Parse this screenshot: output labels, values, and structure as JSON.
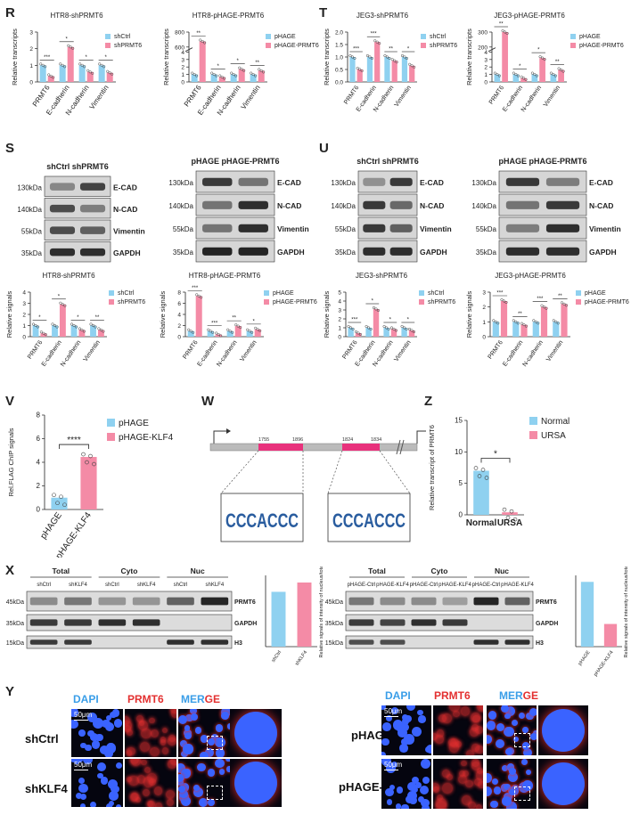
{
  "panels": {
    "R": "R",
    "S": "S",
    "T": "T",
    "U": "U",
    "V": "V",
    "W": "W",
    "Z": "Z",
    "X": "X",
    "Y": "Y"
  },
  "colors": {
    "blue": "#8fd1f0",
    "pink": "#f48ba6",
    "dark": "#222222",
    "micro_bg": "#05050f",
    "dapi": "#3a63ff",
    "prmt6": "#e33030"
  },
  "chart_data": [
    {
      "id": "R1",
      "type": "bar",
      "title": "HTR8-shPRMT6",
      "ylabel": "Relative transcripts",
      "categories": [
        "PRMT6",
        "E-cadherin",
        "N-cadherin",
        "Vimentin"
      ],
      "yticks": [
        "0",
        "1",
        "2",
        "3"
      ],
      "ylim": [
        0,
        3
      ],
      "series": [
        {
          "name": "shCtrl",
          "values": [
            1,
            1,
            1,
            1
          ]
        },
        {
          "name": "shPRMT6",
          "values": [
            0.35,
            2.1,
            0.6,
            0.55
          ]
        }
      ],
      "sig": [
        "***",
        "*",
        "*",
        "*"
      ]
    },
    {
      "id": "R2",
      "type": "bar",
      "title": "HTR8-pHAGE-PRMT6",
      "ylabel": "Relative transcripts",
      "categories": [
        "PRMT6",
        "E-cadherin",
        "N-cadherin",
        "Vimentin"
      ],
      "yticks": [
        "0",
        "1",
        "2",
        "3",
        "4",
        "600",
        "800"
      ],
      "ylim": [
        0,
        800
      ],
      "series": [
        {
          "name": "pHAGE",
          "values": [
            1,
            1,
            1,
            1
          ]
        },
        {
          "name": "pHAGE-PRMT6",
          "values": [
            650,
            0.65,
            1.7,
            1.5
          ]
        }
      ],
      "sig": [
        "**",
        "*",
        "*",
        "**"
      ]
    },
    {
      "id": "T1",
      "type": "bar",
      "title": "JEG3-shPRMT6",
      "ylabel": "Relative transcripts",
      "categories": [
        "PRMT6",
        "E-cadherin",
        "N-cadherin",
        "Vimentin"
      ],
      "yticks": [
        "0.0",
        "0.5",
        "1.0",
        "1.5",
        "2.0"
      ],
      "ylim": [
        0,
        2
      ],
      "series": [
        {
          "name": "shCtrl",
          "values": [
            1,
            1,
            1,
            1
          ]
        },
        {
          "name": "shPRMT6",
          "values": [
            0.5,
            1.6,
            0.85,
            0.65
          ]
        }
      ],
      "sig": [
        "***",
        "***",
        "**",
        "*"
      ]
    },
    {
      "id": "T2",
      "type": "bar",
      "title": "JEG3-pHAGE-PRMT6",
      "ylabel": "Relative transcripts",
      "categories": [
        "PRMT6",
        "E-cadherin",
        "N-cadherin",
        "Vimentin"
      ],
      "yticks": [
        "0",
        "1",
        "2",
        "3",
        "4",
        "5",
        "200",
        "300"
      ],
      "ylim": [
        0,
        300
      ],
      "series": [
        {
          "name": "pHAGE",
          "values": [
            1,
            1,
            1,
            1
          ]
        },
        {
          "name": "pHAGE-PRMT6",
          "values": [
            310,
            0.5,
            3.2,
            1.6
          ]
        }
      ],
      "sig": [
        "**",
        "*",
        "*",
        "**"
      ]
    },
    {
      "id": "S1",
      "type": "bar",
      "title": "HTR8-shPRMT6",
      "ylabel": "Relative signals",
      "categories": [
        "PRMT6",
        "E-cadherin",
        "N-cadherin",
        "Vimentin"
      ],
      "yticks": [
        "0",
        "1",
        "2",
        "3",
        "4"
      ],
      "ylim": [
        0,
        4
      ],
      "series": [
        {
          "name": "shCtrl",
          "values": [
            1,
            1,
            1,
            1
          ]
        },
        {
          "name": "shPRMT6",
          "values": [
            0.3,
            2.9,
            0.6,
            0.6
          ]
        }
      ],
      "sig": [
        "*",
        "*",
        "*",
        "**"
      ]
    },
    {
      "id": "S2",
      "type": "bar",
      "title": "HTR8-pHAGE-PRMT6",
      "ylabel": "Relative signals",
      "categories": [
        "PRMT6",
        "E-cadherin",
        "N-cadherin",
        "Vimentin"
      ],
      "yticks": [
        "0",
        "2",
        "4",
        "6",
        "8"
      ],
      "ylim": [
        0,
        8
      ],
      "series": [
        {
          "name": "pHAGE",
          "values": [
            1,
            1,
            1,
            1
          ]
        },
        {
          "name": "pHAGE-PRMT6",
          "values": [
            7.3,
            0.4,
            1.9,
            1.3
          ]
        }
      ],
      "sig": [
        "***",
        "***",
        "**",
        "*"
      ]
    },
    {
      "id": "U1",
      "type": "bar",
      "title": "JEG3-shPRMT6",
      "ylabel": "Relative signals",
      "categories": [
        "PRMT6",
        "E-cadherin",
        "N-cadherin",
        "Vimentin"
      ],
      "yticks": [
        "0",
        "1",
        "2",
        "3",
        "4",
        "5"
      ],
      "ylim": [
        0,
        5
      ],
      "series": [
        {
          "name": "shCtrl",
          "values": [
            1,
            1,
            1,
            1
          ]
        },
        {
          "name": "shPRMT6",
          "values": [
            0.4,
            3.1,
            0.85,
            0.7
          ]
        }
      ],
      "sig": [
        "***",
        "*",
        "*",
        "*"
      ]
    },
    {
      "id": "U2",
      "type": "bar",
      "title": "JEG3-pHAGE-PRMT6",
      "ylabel": "Relative signals",
      "categories": [
        "PRMT6",
        "E-cadherin",
        "N-cadherin",
        "Vimentin"
      ],
      "yticks": [
        "0",
        "1",
        "2",
        "3"
      ],
      "ylim": [
        0,
        3
      ],
      "series": [
        {
          "name": "pHAGE",
          "values": [
            1,
            1,
            1,
            1
          ]
        },
        {
          "name": "pHAGE-PRMT6",
          "values": [
            2.4,
            0.8,
            2.0,
            2.2
          ]
        }
      ],
      "sig": [
        "***",
        "**",
        "***",
        "**"
      ]
    },
    {
      "id": "V",
      "type": "bar",
      "title": "",
      "ylabel": "Rel.FLAG ChIP signals",
      "categories": [
        "pHAGE",
        "pHAGE-KLF4"
      ],
      "yticks": [
        "0",
        "2",
        "4",
        "6",
        "8"
      ],
      "ylim": [
        0,
        8
      ],
      "series": [
        {
          "name": "",
          "values": [
            1.0,
            4.45
          ]
        }
      ],
      "legend": [
        "pHAGE",
        "pHAGE-KLF4"
      ],
      "sig": [
        "****"
      ]
    },
    {
      "id": "Z",
      "type": "bar",
      "title": "",
      "ylabel": "Relative transcript of PRMT6",
      "categories": [
        "Normal",
        "URSA"
      ],
      "yticks": [
        "0",
        "5",
        "10",
        "15"
      ],
      "ylim": [
        0,
        15
      ],
      "series": [
        {
          "name": "",
          "values": [
            7.0,
            0.4
          ]
        }
      ],
      "legend": [
        "Normal",
        "URSA"
      ],
      "sig": [
        "*"
      ]
    },
    {
      "id": "X1",
      "type": "bar",
      "title": "",
      "ylabel": "Relative signals of intensity of nucleus/total",
      "categories": [
        "shCtrl",
        "shKLF4"
      ],
      "yticks": [],
      "ylim": [
        0,
        1.3
      ],
      "series": [
        {
          "name": "",
          "values": [
            1.0,
            1.17
          ]
        }
      ]
    },
    {
      "id": "X2",
      "type": "bar",
      "title": "",
      "ylabel": "Relative signals of intensity of nucleus/total",
      "categories": [
        "pHAGE",
        "pHAGE-KLF4"
      ],
      "yticks": [],
      "ylim": [
        0,
        1.1
      ],
      "series": [
        {
          "name": "",
          "values": [
            1.0,
            0.35
          ]
        }
      ]
    }
  ],
  "blots": {
    "S_left": {
      "header": "shCtrl shPRMT6",
      "kda": [
        "130kDa",
        "140kDa",
        "55kDa",
        "35kDa"
      ],
      "proteins": [
        "E-CAD",
        "N-CAD",
        "Vimentin",
        "GAPDH"
      ]
    },
    "S_right": {
      "header": "pHAGE  pHAGE-PRMT6",
      "kda": [
        "130kDa",
        "140kDa",
        "55kDa",
        "35kDa"
      ],
      "proteins": [
        "E-CAD",
        "N-CAD",
        "Vimentin",
        "GAPDH"
      ]
    },
    "U_left": {
      "header": "shCtrl shPRMT6",
      "kda": [
        "130kDa",
        "140kDa",
        "55kDa",
        "35kDa"
      ],
      "proteins": [
        "E-CAD",
        "N-CAD",
        "Vimentin",
        "GAPDH"
      ]
    },
    "U_right": {
      "header": "pHAGE  pHAGE-PRMT6",
      "kda": [
        "130kDa",
        "140kDa",
        "55kDa",
        "35kDa"
      ],
      "proteins": [
        "E-CAD",
        "N-CAD",
        "Vimentin",
        "GAPDH"
      ]
    },
    "X_left": {
      "groups": [
        "Total",
        "Cyto",
        "Nuc"
      ],
      "lanes": [
        "shCtrl",
        "shKLF4",
        "shCtrl",
        "shKLF4",
        "shCtrl",
        "shKLF4"
      ],
      "kda": [
        "45kDa",
        "35kDa",
        "15kDa"
      ],
      "proteins": [
        "PRMT6",
        "GAPDH",
        "H3"
      ]
    },
    "X_right": {
      "groups": [
        "Total",
        "Cyto",
        "Nuc"
      ],
      "lanes": [
        "pHAGE-Ctrl",
        "pHAGE-KLF4",
        "pHAGE-Ctrl",
        "pHAGE-KLF4",
        "pHAGE-Ctrl",
        "pHAGE-KLF4"
      ],
      "kda": [
        "45kDa",
        "35kDa",
        "15kDa"
      ],
      "proteins": [
        "PRMT6",
        "GAPDH",
        "H3"
      ]
    }
  },
  "promoter": {
    "pos1a": "1755",
    "pos1b": "1896",
    "pos2a": "1824",
    "pos2b": "1834",
    "motif": "CCCACCC"
  },
  "if": {
    "channels": [
      "DAPI",
      "PRMT6",
      "MER",
      "GE"
    ],
    "left_rows": [
      "shCtrl",
      "shKLF4"
    ],
    "right_rows": [
      "pHAGE",
      "pHAGE-KLF4"
    ],
    "scale": "50μm"
  }
}
